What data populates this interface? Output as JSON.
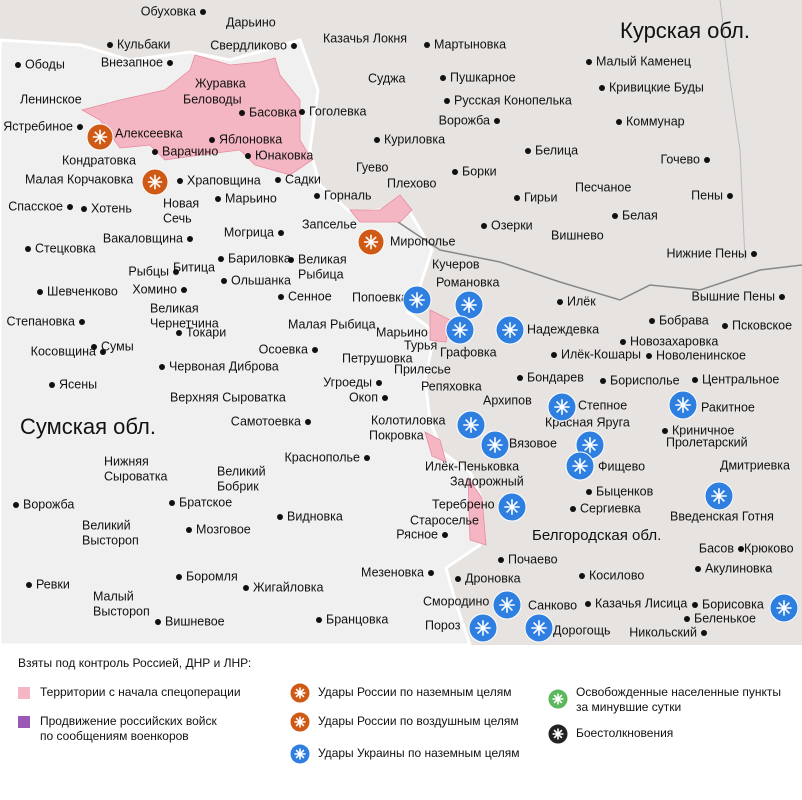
{
  "regions": [
    "Курская обл.",
    "Сумская обл.",
    "Белгородская обл."
  ],
  "places": [
    "Обуховка",
    "Дарьино",
    "Свердликово",
    "Казачья Локня",
    "Мартыновка",
    "Кульбаки",
    "Ободы",
    "Внезапное",
    "Журавка",
    "Беловоды",
    "Суджа",
    "Пушкарное",
    "Русская Конопелька",
    "Малый Каменец",
    "Кривицкие Буды",
    "Ленинское",
    "Басовка",
    "Гоголевка",
    "Ястребиное",
    "Алексеевка",
    "Яблоновка",
    "Куриловка",
    "Ворожба",
    "Белица",
    "Коммунар",
    "Кондратовка",
    "Варачино",
    "Юнаковка",
    "Гуево",
    "Плехово",
    "Борки",
    "Гочево",
    "Малая Корчаковка",
    "Храповщина",
    "Садки",
    "Песчаное",
    "Пены",
    "Спасское",
    "Хотень",
    [
      "Новая",
      "Сечь"
    ],
    "Марьино",
    "Горналь",
    "Гирьи",
    "Белая",
    "Запселье",
    "Озерки",
    "Вишнево",
    "Мирополье",
    "Могрица",
    "Стецковка",
    "Вакаловщина",
    [
      "Великая",
      "Рыбица"
    ],
    "Бариловка",
    "Кучеров",
    "Нижние Пены",
    "Рыбцы",
    "Битица",
    "Ольшанка",
    "Романовка",
    "Хомино",
    "Шевченково",
    "Сенное",
    "Попоевка",
    "Илёк",
    "Вышние Пены",
    [
      "Великая",
      "Чернетчина"
    ],
    "Степановка",
    "Малая Рыбица",
    "Бобрава",
    "Псковское",
    "Надеждевка",
    "Марьино",
    "Токари",
    "Сумы",
    "Косовщина",
    "Турья",
    "Новозахаровка",
    "Осоевка",
    "Графовка",
    "Илёк-Кошары",
    "Новоленинское",
    "Петрушовка",
    "Прилесье",
    "Червоная Диброва",
    "Бондарев",
    "Борисполье",
    "Центральное",
    "Ясены",
    "Угроеды",
    "Репяховка",
    "Окоп",
    "Верхняя Сыроватка",
    "Архипов",
    "Степное",
    "Ракитное",
    "Колотиловка",
    "Красная Яруга",
    "Самотоевка",
    "Покровка",
    "Криничное",
    "Вязовое",
    "Пролетарский",
    [
      "Нижняя",
      "Сыроватка"
    ],
    "Краснополье",
    "Илёк-Пеньковка",
    "Фищево",
    "Дмитриевка",
    [
      "Великий",
      "Бобрик"
    ],
    "Задорожный",
    "Быценков",
    "Ворожба",
    "Братское",
    "Теребрено",
    "Видновка",
    [
      "Великий",
      "Выстороп"
    ],
    "Сергиевка",
    "Староселье",
    "Введенская Готня",
    "Мозговое",
    "Рясное",
    "Басов",
    "Крюково",
    "Почаево",
    "Акулиновка",
    "Мезеновка",
    "Боромля",
    "Жигайловка",
    "Ревки",
    [
      "Малый",
      "Выстороп"
    ],
    "Дроновка",
    "Косилово",
    "Смородино",
    "Санково",
    "Казачья Лисица",
    "Борисовка",
    "Беленькое",
    "Бранцовка",
    "Вишневое",
    "Пороз",
    "Дорогощь",
    "Никольский"
  ],
  "legend": {
    "title": "Взяты под контроль Россией, ДНР и ЛНР:",
    "items": [
      "Территории с начала спецоперации",
      [
        "Продвижение российских войск",
        "по сообщениям военкоров"
      ],
      "Удары России по наземным целям",
      "Удары России по воздушным целям",
      "Удары Украины по наземным целям",
      [
        "Освобожденные населенные пункты",
        "за минувшие сутки"
      ],
      "Боестолкновения"
    ]
  }
}
